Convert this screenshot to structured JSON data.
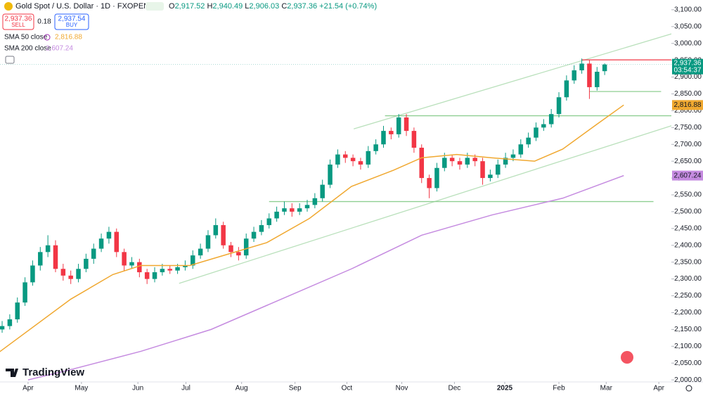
{
  "header": {
    "symbol": "Gold Spot / U.S. Dollar · 1D · FXOPEN",
    "ohlc": [
      {
        "label": "O",
        "value": "2,917.52"
      },
      {
        "label": "H",
        "value": "2,940.49"
      },
      {
        "label": "L",
        "value": "2,906.03"
      },
      {
        "label": "C",
        "value": "2,937.36"
      }
    ],
    "change": "+21.54 (+0.74%)",
    "sell_price": "2,937.36",
    "sell": "SELL",
    "spread": "0.18",
    "buy_price": "2,937.54",
    "buy": "BUY",
    "indicators": [
      {
        "name": "SMA 50 close",
        "value": "2,816.88"
      },
      {
        "name": "SMA 200 close",
        "value": "2,607.24"
      }
    ],
    "logo": "TradingView"
  },
  "chart_data": {
    "type": "candlestick",
    "up_color": "#089981",
    "down_color": "#f23645",
    "xlim": [
      -0.28,
      87.8
    ],
    "xticks": [
      {
        "value": 3.4,
        "label": "Apr"
      },
      {
        "value": 10.4,
        "label": "May"
      },
      {
        "value": 17.8,
        "label": "Jun"
      },
      {
        "value": 24.1,
        "label": "Jul"
      },
      {
        "value": 31.4,
        "label": "Aug"
      },
      {
        "value": 38.4,
        "label": "Sep"
      },
      {
        "value": 45.2,
        "label": "Oct"
      },
      {
        "value": 52.4,
        "label": "Nov"
      },
      {
        "value": 59.3,
        "label": "Dec"
      },
      {
        "value": 65.9,
        "label": "2025"
      },
      {
        "value": 73.0,
        "label": "Feb"
      },
      {
        "value": 79.2,
        "label": "Mar"
      },
      {
        "value": 86.1,
        "label": "Apr"
      }
    ],
    "ylim": [
      1994,
      3129
    ],
    "yticks": [
      {
        "value": 2000,
        "label": "2,000.00"
      },
      {
        "value": 2050,
        "label": "2,050.00"
      },
      {
        "value": 2100,
        "label": "2,100.00"
      },
      {
        "value": 2150,
        "label": "2,150.00"
      },
      {
        "value": 2200,
        "label": "2,200.00"
      },
      {
        "value": 2250,
        "label": "2,250.00"
      },
      {
        "value": 2300,
        "label": "2,300.00"
      },
      {
        "value": 2350,
        "label": "2,350.00"
      },
      {
        "value": 2400,
        "label": "2,400.00"
      },
      {
        "value": 2450,
        "label": "2,450.00"
      },
      {
        "value": 2500,
        "label": "2,500.00"
      },
      {
        "value": 2550,
        "label": "2,550.00"
      },
      {
        "value": 2600,
        "label": "2,600.00"
      },
      {
        "value": 2650,
        "label": "2,650.00"
      },
      {
        "value": 2700,
        "label": "2,700.00"
      },
      {
        "value": 2750,
        "label": "2,750.00"
      },
      {
        "value": 2800,
        "label": "2,800.00"
      },
      {
        "value": 2850,
        "label": "2,850.00"
      },
      {
        "value": 2900,
        "label": "2,900.00"
      },
      {
        "value": 2950,
        "label": "2,950.00"
      },
      {
        "value": 3000,
        "label": "3,000.00"
      },
      {
        "value": 3050,
        "label": "3,050.00"
      },
      {
        "value": 3100,
        "label": "3,100.00"
      }
    ],
    "open": [
      2150,
      2160,
      2180,
      2230,
      2290,
      2340,
      2380,
      2400,
      2330,
      2310,
      2300,
      2330,
      2360,
      2390,
      2420,
      2440,
      2380,
      2340,
      2350,
      2320,
      2300,
      2320,
      2330,
      2325,
      2335,
      2340,
      2370,
      2390,
      2430,
      2460,
      2400,
      2380,
      2370,
      2420,
      2440,
      2460,
      2480,
      2500,
      2510,
      2500,
      2510,
      2520,
      2540,
      2580,
      2640,
      2670,
      2660,
      2650,
      2640,
      2680,
      2700,
      2740,
      2730,
      2780,
      2740,
      2690,
      2600,
      2570,
      2630,
      2660,
      2650,
      2640,
      2660,
      2650,
      2600,
      2610,
      2640,
      2660,
      2670,
      2700,
      2720,
      2750,
      2760,
      2790,
      2840,
      2890,
      2920,
      2940,
      2870,
      2917.52
    ],
    "high": [
      2175,
      2195,
      2245,
      2305,
      2355,
      2395,
      2430,
      2415,
      2345,
      2325,
      2345,
      2375,
      2405,
      2435,
      2455,
      2450,
      2390,
      2365,
      2360,
      2330,
      2335,
      2345,
      2340,
      2345,
      2355,
      2385,
      2405,
      2445,
      2480,
      2470,
      2410,
      2395,
      2435,
      2455,
      2475,
      2495,
      2515,
      2530,
      2525,
      2525,
      2535,
      2555,
      2595,
      2655,
      2685,
      2680,
      2670,
      2660,
      2695,
      2715,
      2755,
      2750,
      2790,
      2790,
      2750,
      2700,
      2610,
      2645,
      2675,
      2670,
      2660,
      2675,
      2670,
      2660,
      2625,
      2655,
      2675,
      2685,
      2715,
      2735,
      2765,
      2775,
      2805,
      2855,
      2905,
      2935,
      2955,
      2950,
      2930,
      2940.49
    ],
    "low": [
      2140,
      2150,
      2170,
      2220,
      2280,
      2325,
      2365,
      2320,
      2295,
      2285,
      2290,
      2320,
      2345,
      2380,
      2405,
      2365,
      2325,
      2330,
      2305,
      2285,
      2290,
      2310,
      2315,
      2315,
      2325,
      2330,
      2360,
      2380,
      2420,
      2390,
      2365,
      2355,
      2360,
      2410,
      2430,
      2450,
      2470,
      2490,
      2485,
      2490,
      2500,
      2510,
      2530,
      2570,
      2630,
      2645,
      2635,
      2625,
      2630,
      2670,
      2690,
      2715,
      2720,
      2725,
      2675,
      2585,
      2540,
      2560,
      2620,
      2635,
      2625,
      2630,
      2635,
      2580,
      2590,
      2600,
      2630,
      2650,
      2660,
      2690,
      2710,
      2740,
      2750,
      2780,
      2830,
      2880,
      2910,
      2835,
      2860,
      2906.03
    ],
    "close": [
      2160,
      2180,
      2230,
      2290,
      2340,
      2380,
      2400,
      2330,
      2310,
      2300,
      2330,
      2360,
      2390,
      2420,
      2440,
      2380,
      2340,
      2350,
      2320,
      2300,
      2320,
      2330,
      2325,
      2335,
      2340,
      2370,
      2390,
      2430,
      2460,
      2400,
      2380,
      2370,
      2420,
      2440,
      2460,
      2480,
      2500,
      2510,
      2500,
      2510,
      2520,
      2540,
      2580,
      2640,
      2670,
      2660,
      2650,
      2640,
      2680,
      2700,
      2740,
      2730,
      2780,
      2740,
      2690,
      2600,
      2570,
      2630,
      2660,
      2650,
      2640,
      2660,
      2650,
      2600,
      2610,
      2640,
      2660,
      2670,
      2700,
      2720,
      2750,
      2760,
      2790,
      2840,
      2890,
      2920,
      2940,
      2870,
      2915.82,
      2937.36
    ],
    "series": [
      {
        "name": "SMA 50 close",
        "color": "#f0a830",
        "x": [
          -0.3,
          9,
          14.5,
          18.2,
          22,
          24.6,
          30.1,
          34.7,
          40.3,
          45.8,
          51.3,
          55,
          59.6,
          64.2,
          69.8,
          73.5,
          78,
          81.5
        ],
        "values": [
          2084,
          2240,
          2313,
          2340,
          2340,
          2340,
          2377,
          2408,
          2480,
          2575,
          2623,
          2660,
          2670,
          2660,
          2650,
          2686,
          2760,
          2816.88
        ]
      },
      {
        "name": "SMA 200 close",
        "color": "#c58be0",
        "x": [
          3.4,
          8.9,
          18.2,
          27.4,
          36.6,
          45.8,
          55,
          64.2,
          73.5,
          81.5
        ],
        "values": [
          2000,
          2030,
          2085,
          2150,
          2240,
          2330,
          2430,
          2490,
          2540,
          2607.24
        ]
      }
    ],
    "drawings": [
      {
        "x": [
          46.1,
          88.0
        ],
        "y": [
          2746,
          3030
        ],
        "color": "#b9e0bb"
      },
      {
        "x": [
          23.2,
          88.0
        ],
        "y": [
          2287,
          2757
        ],
        "color": "#b9e0bb"
      },
      {
        "x": [
          50.2,
          88.0
        ],
        "y": [
          2785,
          2785
        ],
        "color": "#8fcf92"
      },
      {
        "x": [
          35.0,
          85.4
        ],
        "y": [
          2530,
          2530
        ],
        "color": "#8fcf92"
      },
      {
        "x": [
          77.0,
          86.4
        ],
        "y": [
          2857,
          2857
        ],
        "color": "#8fcf92"
      },
      {
        "x": [
          76.0,
          88.0
        ],
        "y": [
          2951,
          2951
        ],
        "color": "#f23645"
      }
    ],
    "price_label": {
      "value": "2,937.36",
      "countdown": "03:54:37",
      "color": "#089981"
    },
    "indicator_labels": [
      {
        "value": "2,816.88",
        "color": "#f0a830"
      },
      {
        "value": "2,607.24",
        "color": "#c58be0"
      }
    ]
  }
}
